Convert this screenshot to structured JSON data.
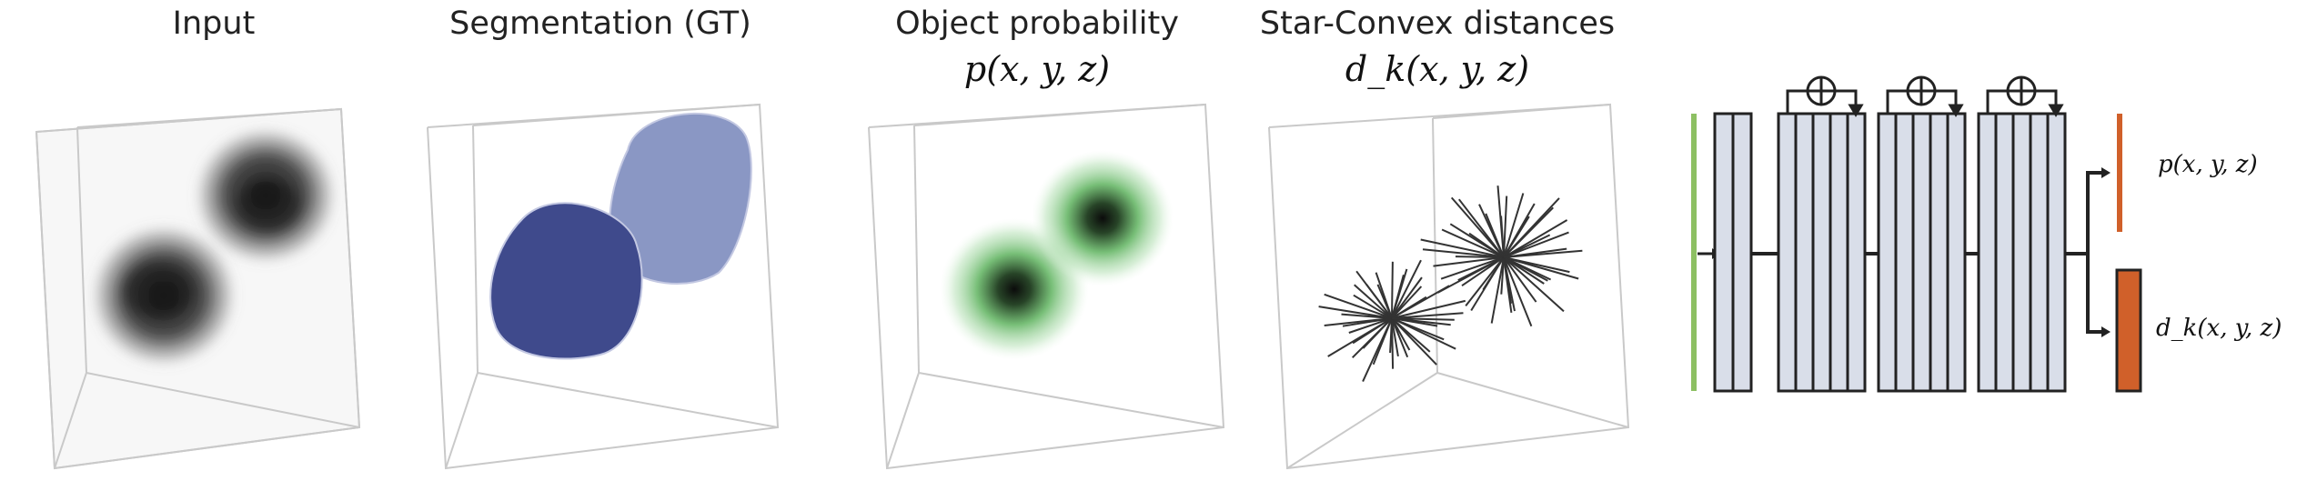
{
  "panels": [
    {
      "id": "input",
      "title": "Input",
      "subtitle": ""
    },
    {
      "id": "segmentation",
      "title": "Segmentation (GT)",
      "subtitle": ""
    },
    {
      "id": "probability",
      "title": "Object probability",
      "subtitle": "p(x, y, z)"
    },
    {
      "id": "distances",
      "title": "Star-Convex distances",
      "subtitle": "d_k(x, y, z)"
    }
  ],
  "network": {
    "output_probability": "p(x, y, z)",
    "output_distances": "d_k(x, y, z)",
    "residual_symbol": "⊕"
  },
  "colors": {
    "box_edge": "#c8c8c8",
    "input_blob": "#1a1a1a",
    "seg_dark": "#3f4a8c",
    "seg_light": "#8a97c4",
    "prob_green": "#6fc36f",
    "star_rays": "#333333",
    "block_fill": "#d9dee9",
    "input_bar": "#8dc063",
    "output_bar": "#d0602a"
  }
}
